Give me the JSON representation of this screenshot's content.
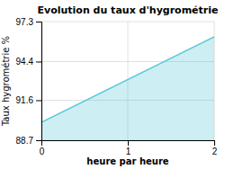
{
  "chart_data": {
    "type": "area",
    "title": "Evolution du taux d'hygrométrie",
    "xlabel": "heure par heure",
    "ylabel": "Taux hygrométrie %",
    "x": [
      0,
      2
    ],
    "values": [
      90.0,
      96.2
    ],
    "color": "#5bc8d8",
    "xlim": [
      0,
      2
    ],
    "ylim": [
      88.7,
      97.3
    ],
    "xticks": [
      0,
      1,
      2
    ],
    "yticks": [
      88.7,
      91.6,
      94.4,
      97.3
    ],
    "grid": true
  }
}
